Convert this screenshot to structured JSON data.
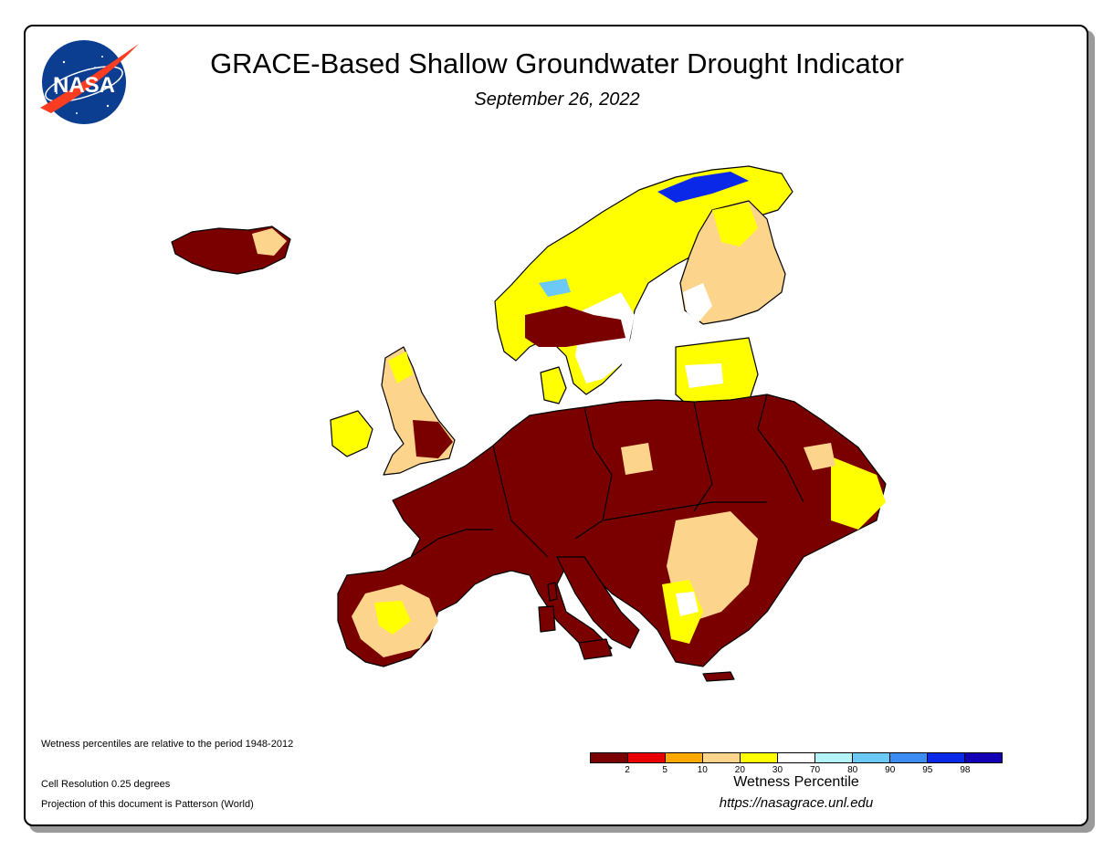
{
  "header": {
    "title": "GRACE-Based Shallow Groundwater Drought Indicator",
    "date": "September 26, 2022",
    "logo_text": "NASA"
  },
  "notes": {
    "period": "Wetness percentiles are relative to the period 1948-2012",
    "resolution": "Cell Resolution 0.25 degrees",
    "projection": "Projection of this document is Patterson (World)"
  },
  "legend": {
    "title": "Wetness Percentile",
    "colors": [
      "#7a0000",
      "#e80000",
      "#ffa800",
      "#fcd48c",
      "#ffff00",
      "#ffffff",
      "#b4f4f8",
      "#6cc8f4",
      "#3c8cf4",
      "#0a28e8",
      "#1400b4"
    ],
    "tick_labels": [
      "2",
      "5",
      "10",
      "20",
      "30",
      "70",
      "80",
      "90",
      "95",
      "98"
    ]
  },
  "footer": {
    "url": "https://nasagrace.unl.edu"
  },
  "map": {
    "region": "Europe",
    "dominant_category": "0-2 percentile"
  }
}
